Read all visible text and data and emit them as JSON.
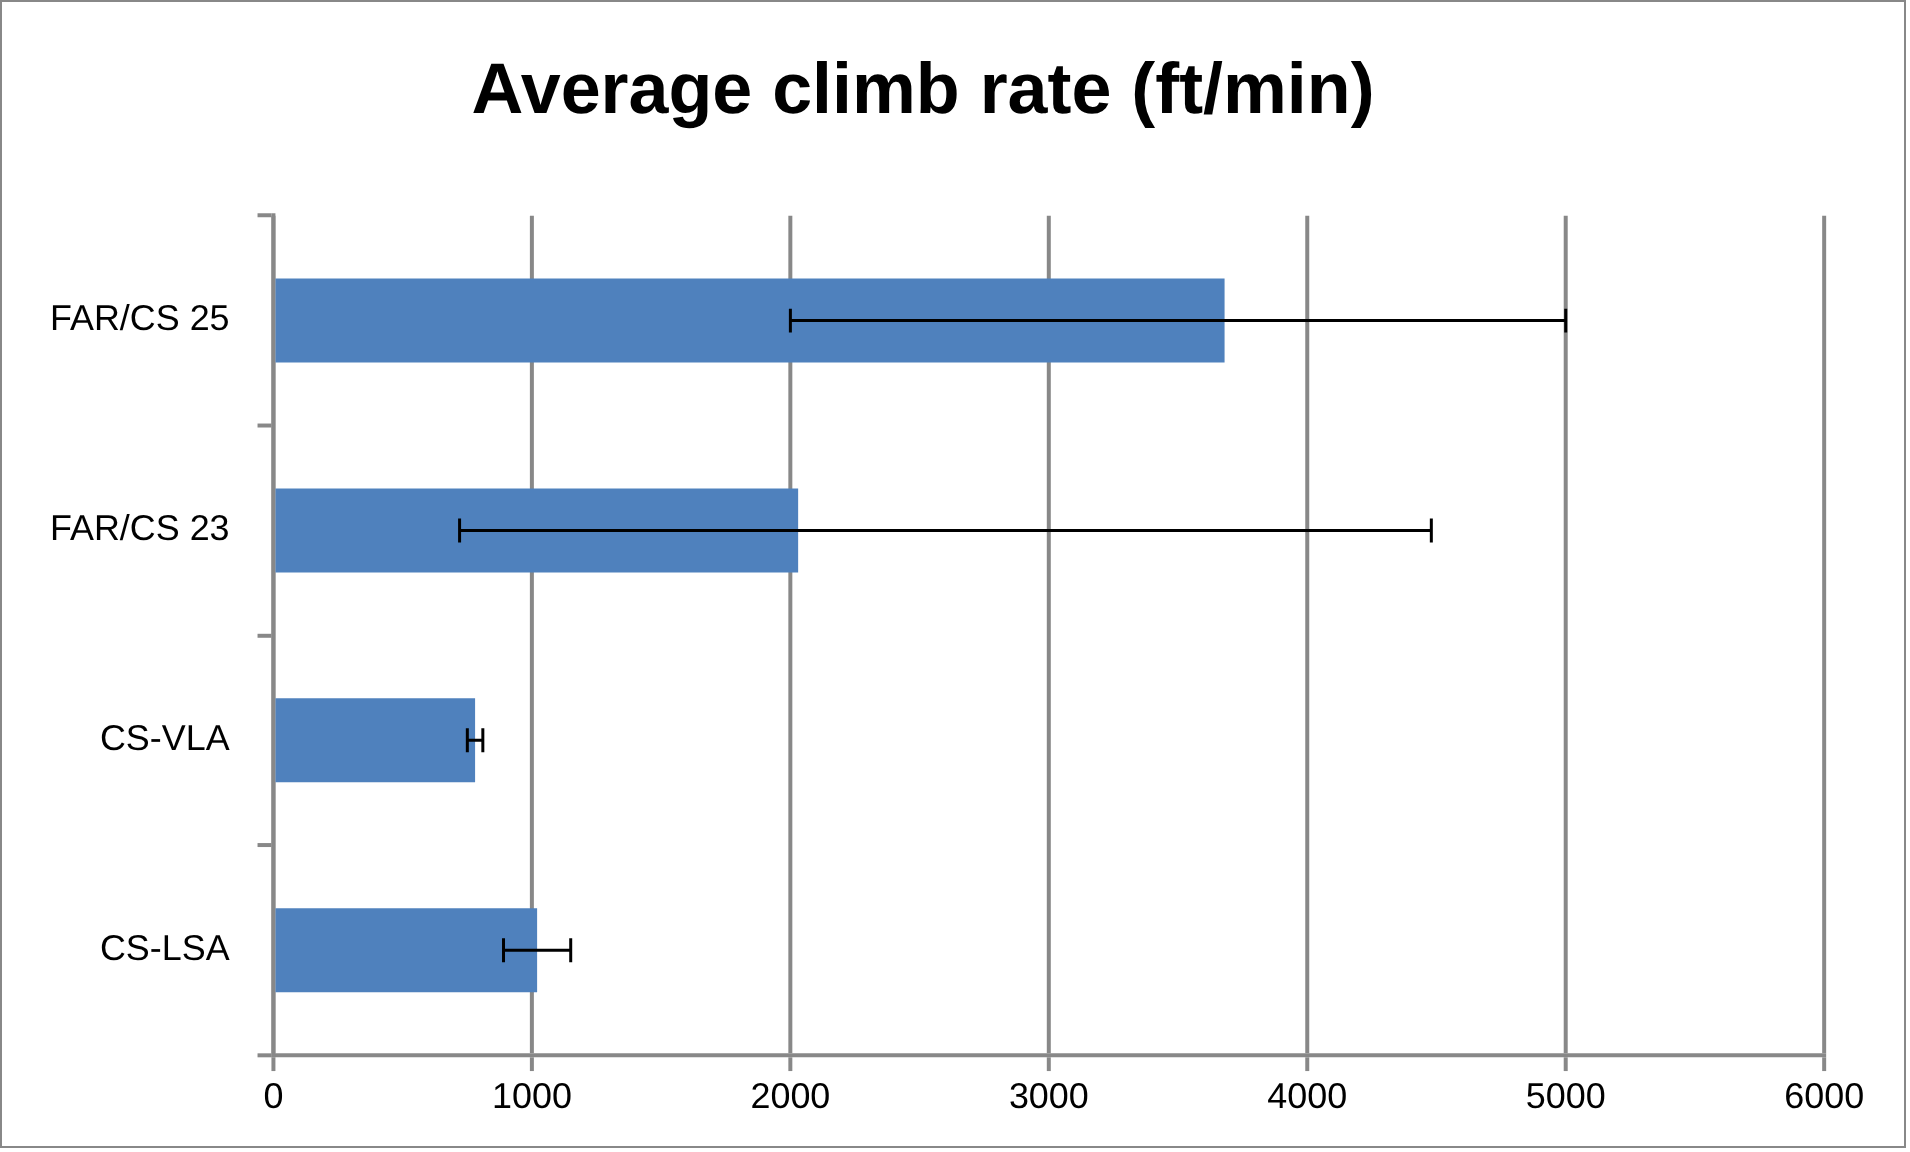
{
  "chart_data": {
    "type": "bar",
    "orientation": "horizontal",
    "title": "Average climb rate (ft/min)",
    "categories": [
      "FAR/CS 25",
      "FAR/CS 23",
      "CS-VLA",
      "CS-LSA"
    ],
    "values": [
      3680,
      2030,
      780,
      1020
    ],
    "errors": [
      [
        2000,
        5000
      ],
      [
        720,
        4480
      ],
      [
        750,
        810
      ],
      [
        890,
        1150
      ]
    ],
    "color": "#4f81bd",
    "xlim": [
      0,
      6000
    ],
    "xticks": [
      0,
      1000,
      2000,
      3000,
      4000,
      5000,
      6000
    ],
    "grid": "x",
    "legend": false
  }
}
